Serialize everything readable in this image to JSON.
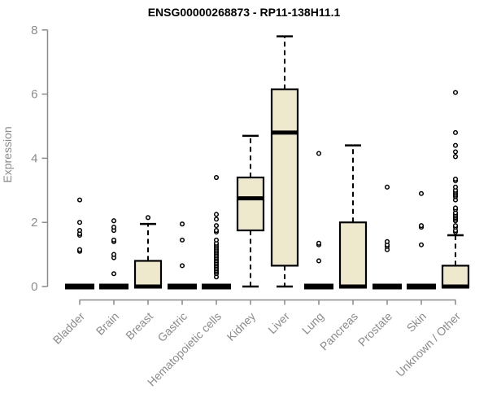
{
  "title": "ENSG00000268873 - RP11-138H11.1",
  "chart_data": {
    "type": "boxplot",
    "title": "ENSG00000268873 - RP11-138H11.1",
    "xlabel": "",
    "ylabel": "Expression",
    "ylim": [
      0,
      8
    ],
    "yticks": [
      0,
      2,
      4,
      6,
      8
    ],
    "grid": false,
    "legend": "none",
    "categories": [
      "Bladder",
      "Brain",
      "Breast",
      "Gastric",
      "Hematopoietic cells",
      "Kidney",
      "Liver",
      "Lung",
      "Pancreas",
      "Prostate",
      "Skin",
      "Unknown / Other"
    ],
    "boxes": [
      {
        "category": "Bladder",
        "whisker_low": 0,
        "q1": 0,
        "median": 0,
        "q3": 0,
        "whisker_high": 0,
        "outliers": [
          1.1,
          1.15,
          1.6,
          1.65,
          1.75,
          2.0,
          2.7
        ]
      },
      {
        "category": "Brain",
        "whisker_low": 0,
        "q1": 0,
        "median": 0,
        "q3": 0,
        "whisker_high": 0,
        "outliers": [
          0.4,
          0.9,
          1.0,
          1.4,
          1.45,
          1.75,
          1.85,
          2.05
        ]
      },
      {
        "category": "Breast",
        "whisker_low": 0,
        "q1": 0,
        "median": 0,
        "q3": 0.8,
        "whisker_high": 1.95,
        "outliers": [
          2.15
        ]
      },
      {
        "category": "Gastric",
        "whisker_low": 0,
        "q1": 0,
        "median": 0,
        "q3": 0,
        "whisker_high": 0,
        "outliers": [
          0.65,
          1.45,
          1.95
        ]
      },
      {
        "category": "Hematopoietic cells",
        "whisker_low": 0,
        "q1": 0,
        "median": 0,
        "q3": 0,
        "whisker_high": 0,
        "outliers": [
          0.3,
          0.4,
          0.45,
          0.5,
          0.55,
          0.6,
          0.65,
          0.7,
          0.75,
          0.8,
          0.85,
          0.9,
          0.95,
          1.0,
          1.05,
          1.1,
          1.15,
          1.2,
          1.25,
          1.3,
          1.35,
          1.45,
          1.7,
          1.75,
          1.9,
          2.1,
          2.25,
          3.4
        ]
      },
      {
        "category": "Kidney",
        "whisker_low": 0,
        "q1": 1.75,
        "median": 2.75,
        "q3": 3.4,
        "whisker_high": 4.7,
        "outliers": []
      },
      {
        "category": "Liver",
        "whisker_low": 0,
        "q1": 0.65,
        "median": 4.8,
        "q3": 6.15,
        "whisker_high": 7.8,
        "outliers": []
      },
      {
        "category": "Lung",
        "whisker_low": 0,
        "q1": 0,
        "median": 0,
        "q3": 0,
        "whisker_high": 0,
        "outliers": [
          0.8,
          1.3,
          1.35,
          4.15
        ]
      },
      {
        "category": "Pancreas",
        "whisker_low": 0,
        "q1": 0,
        "median": 0,
        "q3": 2.0,
        "whisker_high": 4.4,
        "outliers": []
      },
      {
        "category": "Prostate",
        "whisker_low": 0,
        "q1": 0,
        "median": 0,
        "q3": 0,
        "whisker_high": 0,
        "outliers": [
          1.15,
          1.25,
          1.3,
          1.4,
          3.1
        ]
      },
      {
        "category": "Skin",
        "whisker_low": 0,
        "q1": 0,
        "median": 0,
        "q3": 0,
        "whisker_high": 0,
        "outliers": [
          1.3,
          1.85,
          1.9,
          2.9
        ]
      },
      {
        "category": "Unknown / Other",
        "whisker_low": 0,
        "q1": 0,
        "median": 0,
        "q3": 0.65,
        "whisker_high": 1.6,
        "outliers": [
          1.7,
          1.75,
          1.85,
          1.9,
          2.05,
          2.1,
          2.15,
          2.2,
          2.25,
          2.3,
          2.4,
          2.45,
          2.7,
          2.8,
          2.85,
          2.9,
          2.95,
          3.0,
          3.1,
          3.3,
          3.35,
          4.05,
          4.2,
          4.4,
          4.8,
          6.05
        ]
      }
    ],
    "colors": {
      "box_fill": "#EEE8CD",
      "box_border": "#000000",
      "median": "#000000",
      "outlier_stroke": "#000000",
      "outlier_fill": "#FFFFFF",
      "axis": "#8B8B8B",
      "title": "#000000",
      "background": "#FFFFFF"
    }
  }
}
